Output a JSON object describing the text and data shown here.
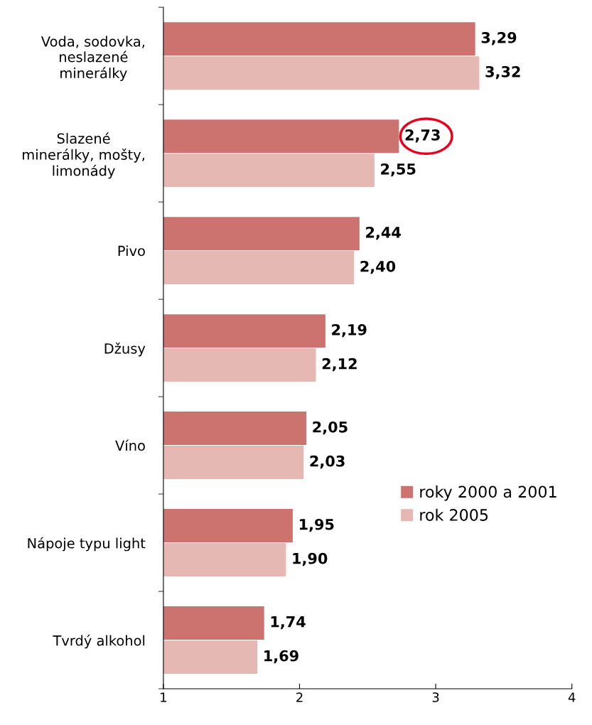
{
  "chart_data": {
    "type": "bar",
    "orientation": "horizontal",
    "categories": [
      "Voda, sodovka,\nneslazené\nminerálky",
      "Slazené\nminerálky, mošty,\nlimonády",
      "Pivo",
      "Džusy",
      "Víno",
      "Nápoje typu light",
      "Tvrdý alkohol"
    ],
    "series": [
      {
        "name": "roky 2000 a 2001",
        "color": "#cc7370",
        "values": [
          3.29,
          2.73,
          2.44,
          2.19,
          2.05,
          1.95,
          1.74
        ],
        "value_labels": [
          "3,29",
          "2,73",
          "2,44",
          "2,19",
          "2,05",
          "1,95",
          "1,74"
        ]
      },
      {
        "name": "rok 2005",
        "color": "#e6b8b3",
        "values": [
          3.32,
          2.55,
          2.4,
          2.12,
          2.03,
          1.9,
          1.69
        ],
        "value_labels": [
          "3,32",
          "2,55",
          "2,40",
          "2,12",
          "2,03",
          "1,90",
          "1,69"
        ]
      }
    ],
    "xlim": [
      1,
      4
    ],
    "xticks": [
      1,
      2,
      3,
      4
    ],
    "legend": "right",
    "grid": false
  }
}
